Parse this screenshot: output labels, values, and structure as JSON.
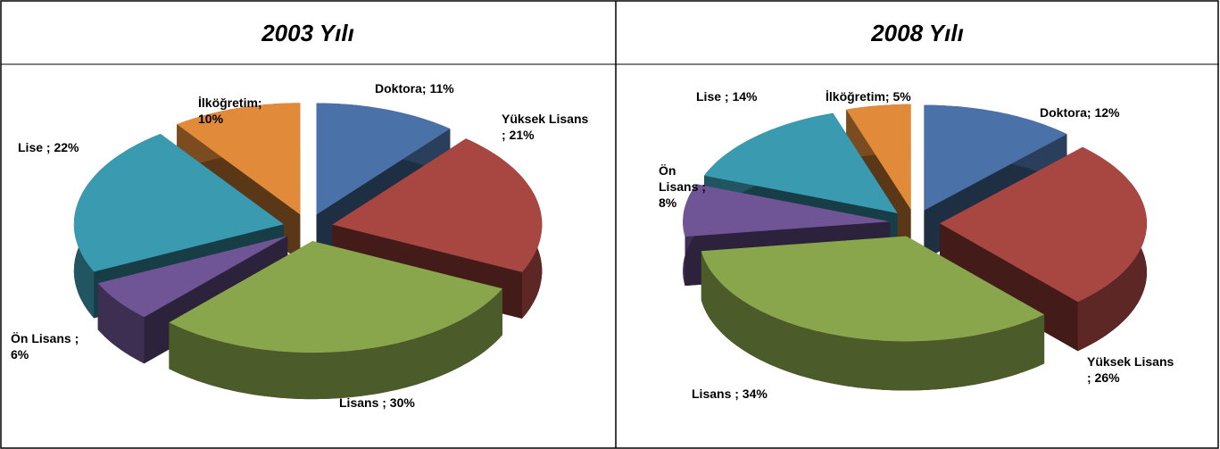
{
  "chart_data": [
    {
      "type": "pie3d",
      "title": "2003 Yılı",
      "values": [
        11,
        21,
        30,
        6,
        22,
        10
      ],
      "value_labels": [
        [
          "Doktora; 11%"
        ],
        [
          "Yüksek Lisans",
          "; 21%"
        ],
        [
          "Lisans ; 30%"
        ],
        [
          "Ön Lisans ;",
          "6%"
        ],
        [
          "Lise ; 22%"
        ],
        [
          "İlköğretim;",
          "10%"
        ]
      ],
      "colors": [
        "#4a72a8",
        "#a84642",
        "#8aa64c",
        "#6f5595",
        "#3a9ab0",
        "#e08a3a"
      ]
    },
    {
      "type": "pie3d",
      "title": "2008 Yılı",
      "values": [
        12,
        26,
        34,
        8,
        14,
        5
      ],
      "value_labels": [
        [
          "Doktora; 12%"
        ],
        [
          "Yüksek Lisans",
          "; 26%"
        ],
        [
          "Lisans ; 34%"
        ],
        [
          "Ön",
          "Lisans ;",
          "8%"
        ],
        [
          "Lise ; 14%"
        ],
        [
          "İlköğretim; 5%"
        ]
      ],
      "colors": [
        "#4a72a8",
        "#a84642",
        "#8aa64c",
        "#6f5595",
        "#3a9ab0",
        "#e08a3a"
      ]
    }
  ]
}
